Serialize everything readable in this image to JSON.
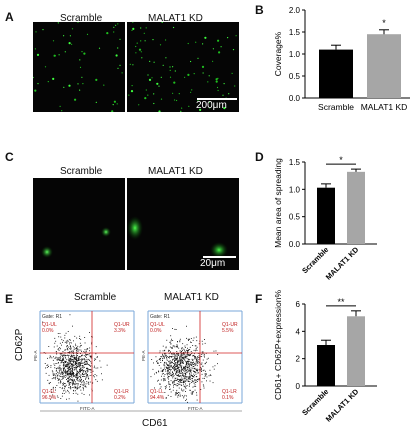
{
  "panel_letters": {
    "A": "A",
    "B": "B",
    "C": "C",
    "D": "D",
    "E": "E",
    "F": "F"
  },
  "panelA": {
    "left_label": "Scramble",
    "right_label": "MALAT1 KD",
    "scale_bar": "200μm"
  },
  "panelC": {
    "left_label": "Scramble",
    "right_label": "MALAT1 KD",
    "scale_bar": "20μm"
  },
  "panelE": {
    "left_title": "Scramble",
    "right_title": "MALAT1 KD",
    "gate": "Gate: R1",
    "y_axis": "CD62P",
    "x_axis": "CD61",
    "inner_y": "PE-A",
    "inner_x": "FITC-A",
    "left_quadrants": {
      "ul_name": "Q1-UL",
      "ul_val": "0.0%",
      "ur_name": "Q1-UR",
      "ur_val": "3.3%",
      "ll_name": "Q1-LL",
      "ll_val": "96.5%",
      "lr_name": "Q1-LR",
      "lr_val": "0.2%"
    },
    "right_quadrants": {
      "ul_name": "Q1-UL",
      "ul_val": "0.0%",
      "ur_name": "Q1-UR",
      "ur_val": "5.5%",
      "ll_name": "Q1-LL",
      "ll_val": "94.4%",
      "lr_name": "Q1-LR",
      "lr_val": "0.1%"
    }
  },
  "chart_data": [
    {
      "panel": "B",
      "type": "bar",
      "categories": [
        "Scramble",
        "MALAT1 KD"
      ],
      "values": [
        1.1,
        1.45
      ],
      "errors": [
        0.1,
        0.1
      ],
      "colors": [
        "#000000",
        "#a6a6a6"
      ],
      "ylabel": "Coverage%",
      "ylim": [
        0,
        2.0
      ],
      "yticks": [
        "0.0",
        "0.5",
        "1.0",
        "1.5",
        "2.0"
      ],
      "significance": "*"
    },
    {
      "panel": "D",
      "type": "bar",
      "categories": [
        "Scramble",
        "MALAT1 KD"
      ],
      "values": [
        1.03,
        1.32
      ],
      "errors": [
        0.07,
        0.05
      ],
      "colors": [
        "#000000",
        "#a6a6a6"
      ],
      "ylabel": "Mean area of spreading",
      "ylim": [
        0,
        1.5
      ],
      "yticks": [
        "0.0",
        "0.5",
        "1.0",
        "1.5"
      ],
      "significance": "*"
    },
    {
      "panel": "F",
      "type": "bar",
      "categories": [
        "Scramble",
        "MALAT1 KD"
      ],
      "values": [
        3.0,
        5.1
      ],
      "errors": [
        0.35,
        0.4
      ],
      "colors": [
        "#000000",
        "#a6a6a6"
      ],
      "ylabel": "CD61+ CD62P+expression%",
      "ylim": [
        0,
        6
      ],
      "yticks": [
        "0",
        "2",
        "4",
        "6"
      ],
      "significance": "**"
    }
  ]
}
